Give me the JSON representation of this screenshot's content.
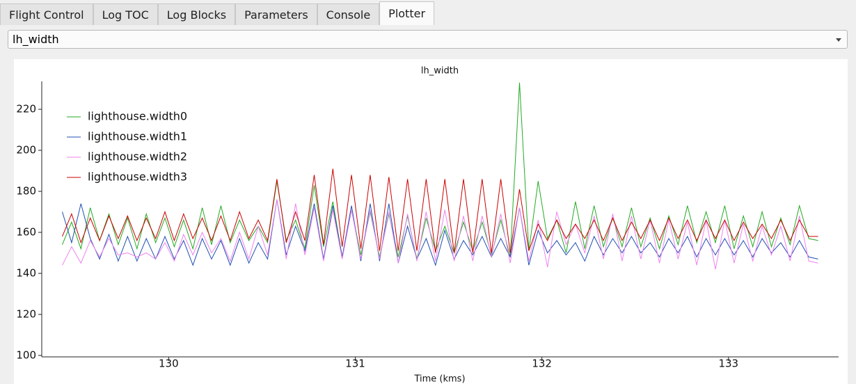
{
  "tabs": [
    "Flight Control",
    "Log TOC",
    "Log Blocks",
    "Parameters",
    "Console",
    "Plotter"
  ],
  "dropdown": {
    "value": "lh_width"
  },
  "chart_data": {
    "type": "line",
    "title": "lh_width",
    "x_label": "Time (kms)",
    "x": [
      129.43,
      129.48,
      129.53,
      129.58,
      129.63,
      129.68,
      129.73,
      129.78,
      129.83,
      129.88,
      129.93,
      129.98,
      130.03,
      130.08,
      130.13,
      130.18,
      130.23,
      130.28,
      130.33,
      130.38,
      130.43,
      130.48,
      130.53,
      130.58,
      130.63,
      130.68,
      130.73,
      130.78,
      130.83,
      130.88,
      130.93,
      130.98,
      131.03,
      131.08,
      131.13,
      131.18,
      131.23,
      131.28,
      131.33,
      131.38,
      131.43,
      131.48,
      131.53,
      131.58,
      131.63,
      131.68,
      131.73,
      131.78,
      131.83,
      131.88,
      131.93,
      131.98,
      132.03,
      132.08,
      132.13,
      132.18,
      132.23,
      132.28,
      132.33,
      132.38,
      132.43,
      132.48,
      132.53,
      132.58,
      132.63,
      132.68,
      132.73,
      132.78,
      132.83,
      132.88,
      132.93,
      132.98,
      133.03,
      133.08,
      133.13,
      133.18,
      133.23,
      133.28,
      133.33,
      133.38,
      133.43,
      133.48
    ],
    "series": [
      {
        "name": "lighthouse.width0",
        "color": "#22aa22",
        "values": [
          154,
          165,
          152,
          172,
          156,
          169,
          154,
          167,
          152,
          169,
          155,
          167,
          153,
          166,
          152,
          172,
          154,
          173,
          155,
          166,
          156,
          163,
          155,
          185,
          156,
          166,
          152,
          183,
          153,
          175,
          148,
          171,
          149,
          170,
          148,
          169,
          148,
          168,
          147,
          167,
          151,
          163,
          150,
          165,
          151,
          165,
          149,
          166,
          148,
          233,
          151,
          185,
          157,
          166,
          150,
          175,
          152,
          173,
          153,
          167,
          153,
          172,
          153,
          167,
          152,
          168,
          154,
          173,
          155,
          170,
          155,
          173,
          152,
          168,
          153,
          170,
          153,
          167,
          154,
          173,
          157,
          156
        ]
      },
      {
        "name": "lighthouse.width1",
        "color": "#1f4fb4",
        "values": [
          170,
          155,
          174,
          157,
          147,
          159,
          146,
          158,
          146,
          157,
          147,
          158,
          147,
          156,
          144,
          157,
          147,
          156,
          144,
          157,
          145,
          155,
          147,
          176,
          149,
          163,
          151,
          174,
          147,
          173,
          148,
          173,
          146,
          174,
          146,
          174,
          145,
          163,
          147,
          157,
          144,
          161,
          147,
          156,
          149,
          158,
          148,
          157,
          148,
          172,
          144,
          161,
          150,
          156,
          149,
          155,
          146,
          158,
          149,
          157,
          150,
          158,
          150,
          155,
          148,
          157,
          150,
          158,
          148,
          157,
          149,
          157,
          149,
          156,
          148,
          157,
          150,
          155,
          148,
          156,
          148,
          147
        ]
      },
      {
        "name": "lighthouse.width2",
        "color": "#ee82ee",
        "values": [
          144,
          153,
          145,
          156,
          148,
          157,
          149,
          150,
          148,
          150,
          147,
          155,
          146,
          159,
          149,
          160,
          150,
          157,
          146,
          160,
          147,
          163,
          149,
          176,
          147,
          174,
          149,
          172,
          146,
          171,
          147,
          171,
          147,
          171,
          147,
          170,
          145,
          169,
          146,
          170,
          146,
          171,
          146,
          168,
          146,
          168,
          148,
          169,
          145,
          172,
          146,
          166,
          143,
          170,
          154,
          164,
          150,
          168,
          147,
          169,
          146,
          168,
          147,
          166,
          145,
          166,
          147,
          165,
          144,
          166,
          142,
          166,
          145,
          164,
          146,
          163,
          149,
          163,
          146,
          168,
          146,
          145
        ]
      },
      {
        "name": "lighthouse.width3",
        "color": "#cc0000",
        "values": [
          158,
          169,
          155,
          167,
          156,
          168,
          157,
          168,
          156,
          167,
          157,
          170,
          156,
          169,
          157,
          167,
          156,
          168,
          156,
          170,
          157,
          166,
          156,
          186,
          155,
          170,
          156,
          188,
          154,
          191,
          153,
          188,
          152,
          188,
          151,
          187,
          151,
          186,
          151,
          186,
          150,
          186,
          150,
          186,
          150,
          186,
          150,
          186,
          150,
          181,
          151,
          164,
          156,
          166,
          157,
          164,
          157,
          166,
          156,
          167,
          156,
          165,
          157,
          166,
          156,
          167,
          157,
          166,
          156,
          166,
          157,
          166,
          156,
          165,
          157,
          164,
          157,
          166,
          156,
          166,
          158,
          158
        ]
      }
    ],
    "xlim": [
      129.32,
      133.59
    ],
    "ylim": [
      99.3,
      233.6
    ],
    "xticks": [
      130,
      131,
      132,
      133
    ],
    "yticks": [
      100,
      120,
      140,
      160,
      180,
      200,
      220
    ],
    "legend": "upper-left"
  }
}
